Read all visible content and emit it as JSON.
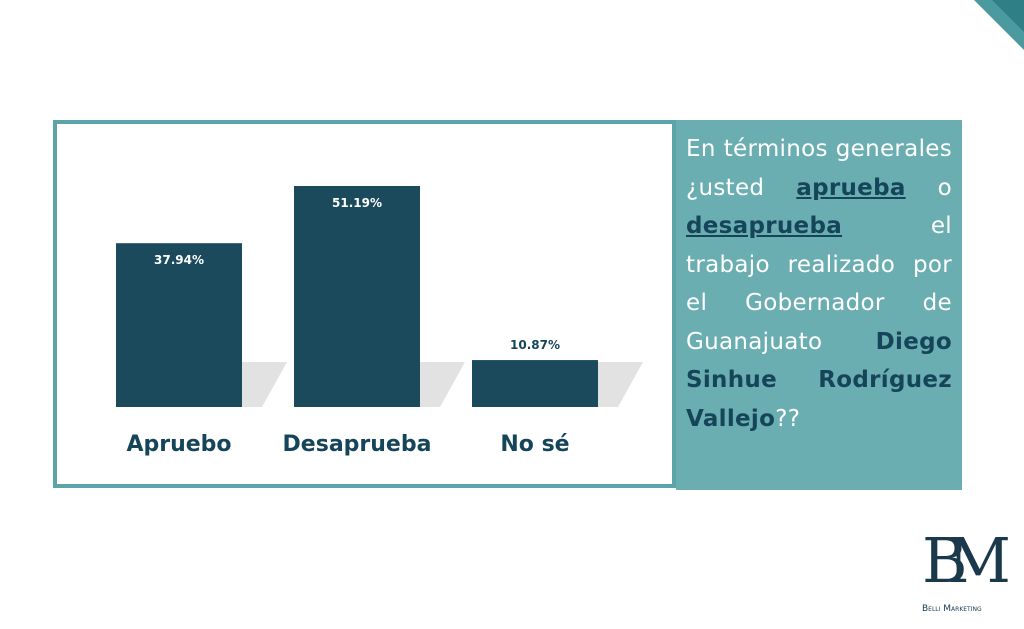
{
  "chart_data": {
    "type": "bar",
    "categories": [
      "Apruebo",
      "Desaprueba",
      "No sé"
    ],
    "values": [
      37.94,
      51.19,
      10.87
    ],
    "value_labels": [
      "37.94%",
      "51.19%",
      "10.87%"
    ],
    "color": "#1a4a5c"
  },
  "question": {
    "parts": [
      "En términos generales ¿usted",
      "aprueba",
      "o",
      "desaprueba",
      "el trabajo realizado por el Gobernador de Guanajuato",
      "Diego Sinhue Rodríguez Vallejo",
      "??"
    ]
  },
  "logo": {
    "monogram": "BM",
    "text": "Belli Marketing"
  }
}
